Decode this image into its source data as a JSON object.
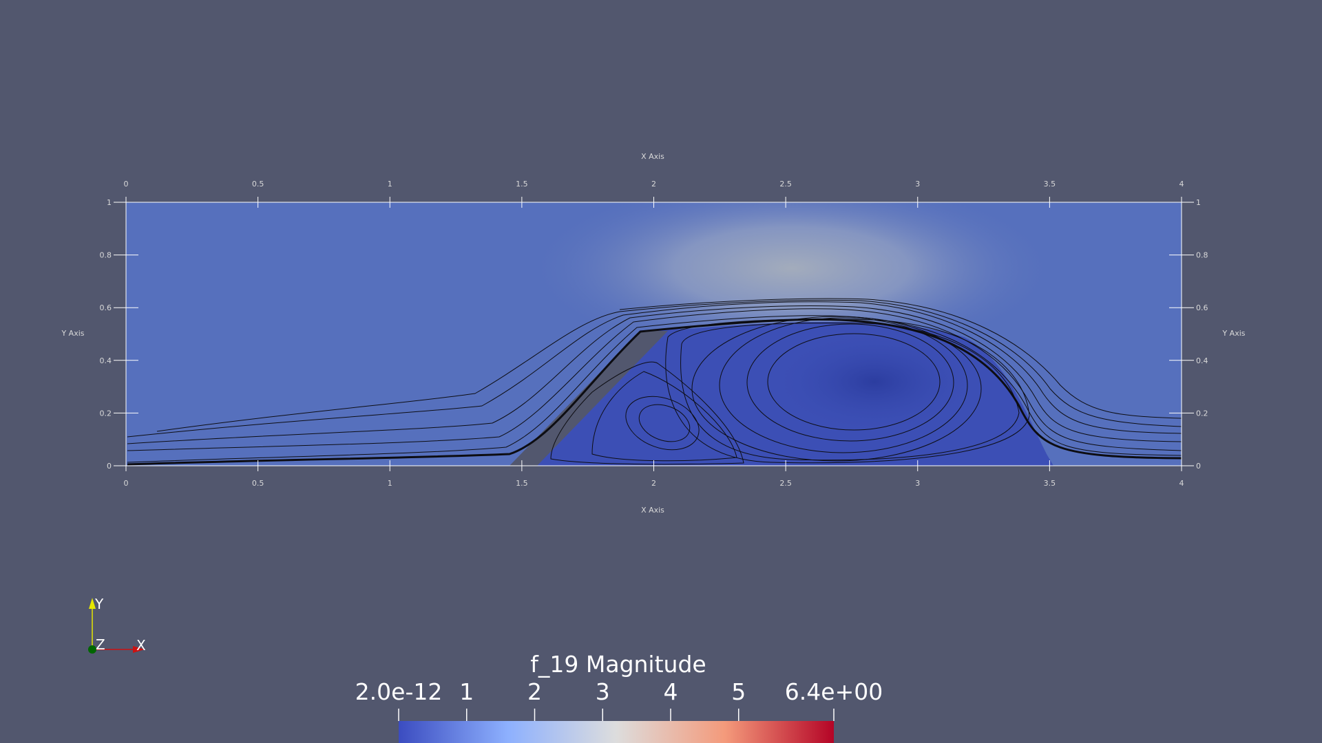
{
  "render_view": {
    "background_color": "#52576e"
  },
  "axes": {
    "x_title_top": "X Axis",
    "x_title_bottom": "X Axis",
    "y_title_left": "Y Axis",
    "y_title_right": "Y Axis",
    "x_ticks": [
      "0",
      "0.5",
      "1",
      "1.5",
      "2",
      "2.5",
      "3",
      "3.5",
      "4"
    ],
    "y_ticks": [
      "0",
      "0.2",
      "0.4",
      "0.6",
      "0.8",
      "1"
    ]
  },
  "scalar_bar": {
    "title": "f_19 Magnitude",
    "labels": [
      "2.0e-12",
      "1",
      "2",
      "3",
      "4",
      "5",
      "6.4e+00"
    ],
    "range": [
      0,
      6.4
    ],
    "colors": [
      "#3b4cc0",
      "#dddddd",
      "#b40426"
    ]
  },
  "orientation_axes": {
    "x_label": "X",
    "y_label": "Y",
    "z_label": "Z",
    "x_color": "#cc1111",
    "y_color": "#e6e600",
    "z_color": "#006600"
  },
  "domain": {
    "x_range": [
      0,
      4
    ],
    "y_range": [
      0,
      1
    ],
    "obstacle_color": "#52576e",
    "field_colors": [
      "#3c4fb5",
      "#5a76c0",
      "#9aa8c0"
    ]
  }
}
